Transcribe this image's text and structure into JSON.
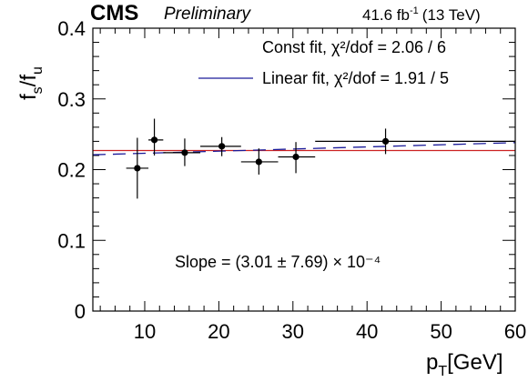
{
  "header": {
    "experiment": "CMS",
    "status": "Preliminary",
    "lumi_value": "41.6 fb",
    "lumi_exp": "-1",
    "lumi_energy": "(13 TeV)"
  },
  "chart_data": {
    "type": "scatter",
    "ylabel_main": "f",
    "ylabel_sub1": "s",
    "ylabel_slash": "/f",
    "ylabel_sub2": "u",
    "xlabel_main": "p",
    "xlabel_sub": "T",
    "xlabel_unit": "[GeV]",
    "xlim": [
      3,
      60
    ],
    "ylim": [
      0,
      0.4
    ],
    "x_ticks": [
      10,
      20,
      30,
      40,
      50,
      60
    ],
    "y_ticks": [
      0,
      0.1,
      0.2,
      0.3,
      0.4
    ],
    "x_tick_labels": [
      "10",
      "20",
      "30",
      "40",
      "50",
      "60"
    ],
    "y_tick_labels": [
      "0",
      "0.1",
      "0.2",
      "0.3",
      "0.4"
    ],
    "points": [
      {
        "x": 9.0,
        "y": 0.202,
        "xlo": 7.5,
        "xhi": 10.5,
        "ylo": 0.159,
        "yhi": 0.245
      },
      {
        "x": 11.3,
        "y": 0.242,
        "xlo": 10.5,
        "xhi": 12.5,
        "ylo": 0.22,
        "yhi": 0.272
      },
      {
        "x": 15.4,
        "y": 0.224,
        "xlo": 12.5,
        "xhi": 17.5,
        "ylo": 0.205,
        "yhi": 0.244
      },
      {
        "x": 20.4,
        "y": 0.233,
        "xlo": 17.5,
        "xhi": 23.0,
        "ylo": 0.219,
        "yhi": 0.246
      },
      {
        "x": 25.4,
        "y": 0.211,
        "xlo": 23.0,
        "xhi": 28.0,
        "ylo": 0.193,
        "yhi": 0.23
      },
      {
        "x": 30.4,
        "y": 0.218,
        "xlo": 28.0,
        "xhi": 33.0,
        "ylo": 0.195,
        "yhi": 0.239
      },
      {
        "x": 42.5,
        "y": 0.24,
        "xlo": 33.0,
        "xhi": 60.0,
        "ylo": 0.222,
        "yhi": 0.258
      }
    ],
    "const_fit": {
      "value": 0.227,
      "color": "#cc2222"
    },
    "linear_fit": {
      "y_at_3": 0.221,
      "slope": 0.000301,
      "color": "#1a1a99"
    },
    "legend": {
      "const_label": "Const fit, χ²/dof = 2.06 / 6",
      "linear_label": "Linear fit, χ²/dof = 1.91 / 5"
    },
    "annotation": "Slope = (3.01 ± 7.69) × 10⁻⁴"
  }
}
